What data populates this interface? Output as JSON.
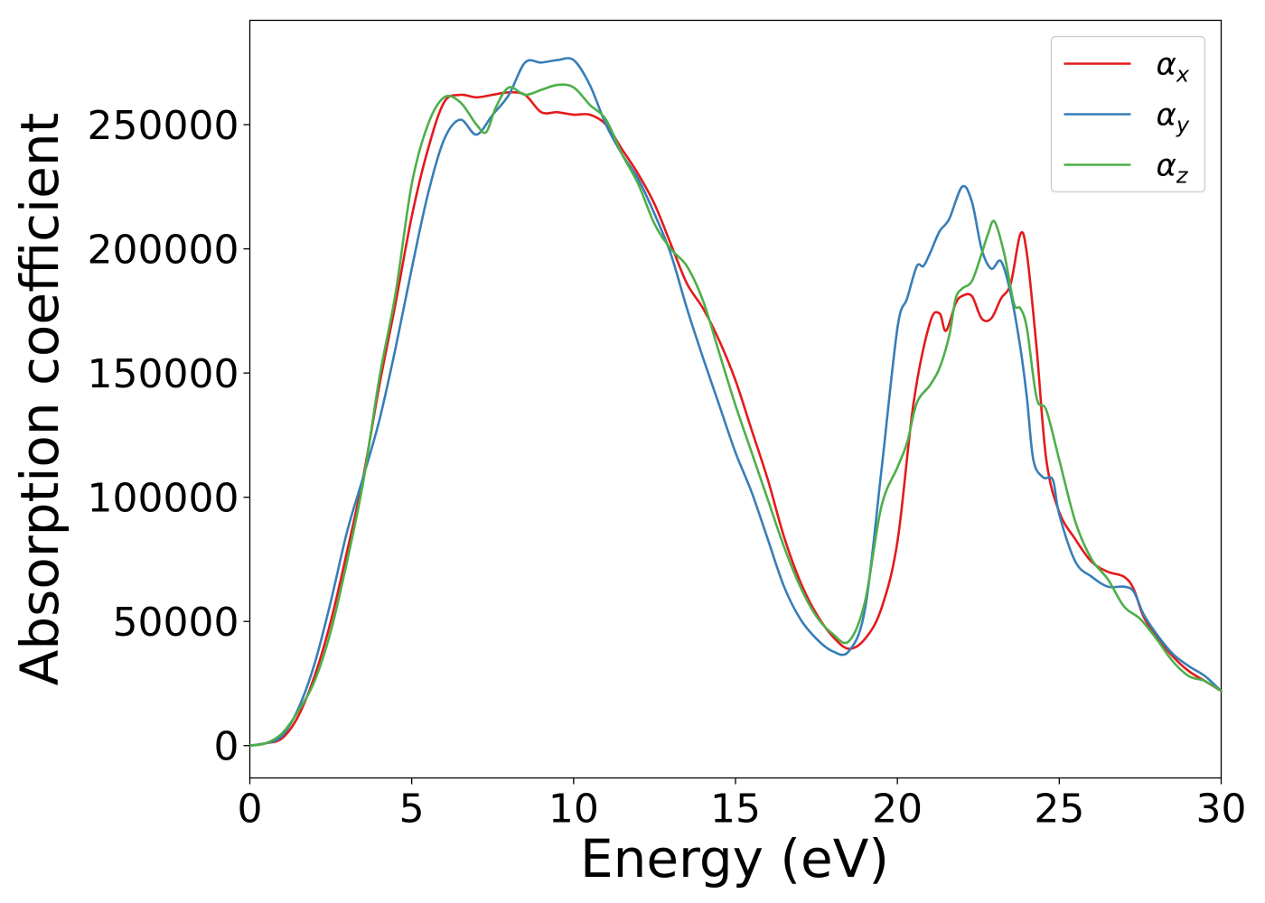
{
  "chart_data": {
    "type": "line",
    "xlabel": "Energy (eV)",
    "ylabel": "Absorption coefficient",
    "xlim": [
      0,
      30
    ],
    "ylim": [
      -13000,
      292000
    ],
    "xticks": [
      0,
      5,
      10,
      15,
      20,
      25,
      30
    ],
    "xtick_labels": [
      "0",
      "5",
      "10",
      "15",
      "20",
      "25",
      "30"
    ],
    "yticks": [
      0,
      50000,
      100000,
      150000,
      200000,
      250000
    ],
    "ytick_labels": [
      "0",
      "50000",
      "100000",
      "150000",
      "200000",
      "250000"
    ],
    "grid": false,
    "legend_position": "top-right",
    "series": [
      {
        "name": "α",
        "subscript": "x",
        "color": "#e41a1c",
        "x": [
          0,
          0.5,
          1.0,
          1.5,
          2.0,
          2.5,
          3.0,
          3.5,
          4.0,
          4.5,
          5.0,
          5.5,
          6.0,
          6.5,
          7.0,
          7.5,
          8.0,
          8.5,
          9.0,
          9.5,
          10.0,
          10.5,
          11.0,
          11.5,
          12.0,
          12.5,
          13.0,
          13.5,
          14.0,
          14.5,
          15.0,
          15.5,
          16.0,
          16.5,
          17.0,
          17.5,
          18.0,
          18.5,
          19.0,
          19.5,
          20.0,
          20.5,
          21.0,
          21.3,
          21.5,
          21.8,
          22.0,
          22.3,
          22.6,
          22.9,
          23.2,
          23.5,
          23.8,
          24.0,
          24.3,
          24.6,
          25.0,
          25.5,
          26.0,
          26.5,
          27.0,
          27.3,
          27.6,
          28.0,
          28.5,
          29.0,
          29.5,
          30.0
        ],
        "y": [
          0,
          1000,
          3000,
          12000,
          28000,
          50000,
          78000,
          108000,
          145000,
          178000,
          213000,
          240000,
          259000,
          262000,
          261000,
          262000,
          263000,
          262000,
          255000,
          255000,
          254000,
          254000,
          250000,
          240000,
          230000,
          218000,
          202000,
          186000,
          176000,
          163000,
          147000,
          127000,
          107000,
          84000,
          66000,
          53000,
          44000,
          39000,
          43000,
          55000,
          82000,
          138000,
          170000,
          174000,
          167000,
          178000,
          181000,
          181000,
          172000,
          172000,
          180000,
          186000,
          206000,
          198000,
          160000,
          115000,
          94000,
          83000,
          74000,
          70000,
          68000,
          63000,
          52000,
          44000,
          36000,
          30000,
          26000,
          22000
        ]
      },
      {
        "name": "α",
        "subscript": "y",
        "color": "#377eb8",
        "x": [
          0,
          0.5,
          1.0,
          1.5,
          2.0,
          2.5,
          3.0,
          3.5,
          4.0,
          4.5,
          5.0,
          5.5,
          6.0,
          6.5,
          7.0,
          7.5,
          8.0,
          8.5,
          9.0,
          9.5,
          10.0,
          10.5,
          11.0,
          11.5,
          12.0,
          12.5,
          13.0,
          13.5,
          14.0,
          14.5,
          15.0,
          15.5,
          16.0,
          16.5,
          17.0,
          17.5,
          18.0,
          18.5,
          19.0,
          19.5,
          20.0,
          20.3,
          20.6,
          20.8,
          21.0,
          21.3,
          21.6,
          22.0,
          22.3,
          22.6,
          22.9,
          23.2,
          23.5,
          23.8,
          24.0,
          24.2,
          24.5,
          24.8,
          25.0,
          25.5,
          26.0,
          26.5,
          27.0,
          27.3,
          27.6,
          28.0,
          28.5,
          29.0,
          29.5,
          30.0
        ],
        "y": [
          0,
          1000,
          4000,
          15000,
          33000,
          58000,
          86000,
          108000,
          131000,
          160000,
          192000,
          222000,
          244000,
          252000,
          246000,
          254000,
          262000,
          275000,
          275000,
          276000,
          276000,
          266000,
          250000,
          238000,
          228000,
          214000,
          198000,
          176000,
          156000,
          137000,
          118000,
          102000,
          83000,
          64000,
          51000,
          43000,
          38000,
          38000,
          55000,
          110000,
          168000,
          180000,
          193000,
          193000,
          198000,
          207000,
          212000,
          225000,
          219000,
          200000,
          192000,
          195000,
          182000,
          160000,
          140000,
          115000,
          108000,
          107000,
          93000,
          74000,
          68000,
          64000,
          64000,
          62000,
          53000,
          45000,
          37000,
          32000,
          28000,
          22000
        ]
      },
      {
        "name": "α",
        "subscript": "z",
        "color": "#4daf4a",
        "x": [
          0,
          0.5,
          1.0,
          1.5,
          2.0,
          2.5,
          3.0,
          3.5,
          4.0,
          4.5,
          5.0,
          5.5,
          6.0,
          6.5,
          7.0,
          7.3,
          7.6,
          8.0,
          8.5,
          9.0,
          9.5,
          10.0,
          10.5,
          11.0,
          11.5,
          12.0,
          12.5,
          13.0,
          13.5,
          14.0,
          14.5,
          15.0,
          15.5,
          16.0,
          16.5,
          17.0,
          17.5,
          18.0,
          18.5,
          19.0,
          19.5,
          20.0,
          20.3,
          20.6,
          21.0,
          21.3,
          21.6,
          21.8,
          22.0,
          22.3,
          22.6,
          22.8,
          23.0,
          23.3,
          23.6,
          23.8,
          24.0,
          24.3,
          24.6,
          25.0,
          25.5,
          26.0,
          26.5,
          27.0,
          27.5,
          28.0,
          28.5,
          29.0,
          29.5,
          30.0
        ],
        "y": [
          0,
          1000,
          5000,
          14000,
          26000,
          46000,
          74000,
          106000,
          148000,
          182000,
          226000,
          250000,
          261000,
          259000,
          250000,
          247000,
          257000,
          265000,
          262000,
          264000,
          266000,
          265000,
          258000,
          252000,
          238000,
          226000,
          210000,
          200000,
          193000,
          179000,
          158000,
          137000,
          118000,
          99000,
          80000,
          64000,
          52000,
          45000,
          42000,
          58000,
          96000,
          112000,
          122000,
          138000,
          145000,
          152000,
          165000,
          180000,
          184000,
          187000,
          198000,
          206000,
          211000,
          198000,
          178000,
          176000,
          168000,
          140000,
          135000,
          115000,
          90000,
          75000,
          67000,
          56000,
          51000,
          43000,
          34000,
          28000,
          26000,
          22000
        ]
      }
    ]
  }
}
